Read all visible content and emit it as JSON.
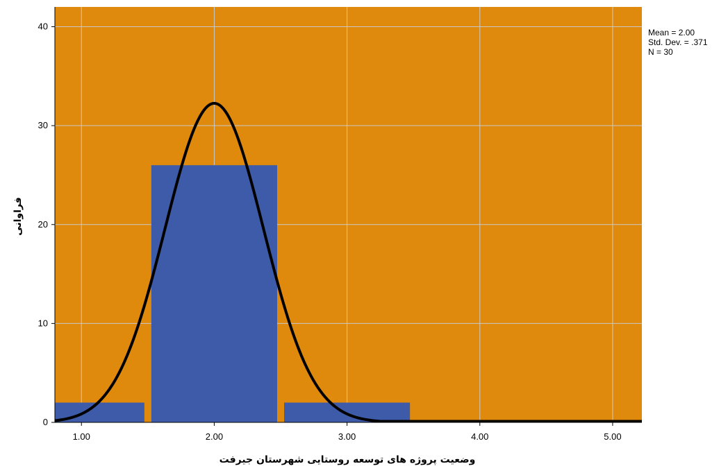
{
  "chart_data": {
    "type": "bar",
    "subtype": "histogram",
    "xlabel": "وضعیت پروژه های توسعه روستایی شهرستان جیرفت",
    "ylabel": "فراوانی",
    "xlim": [
      0.8,
      5.22
    ],
    "ylim": [
      0,
      42
    ],
    "xticks": [
      "1.00",
      "2.00",
      "3.00",
      "4.00",
      "5.00"
    ],
    "xtick_values": [
      1,
      2,
      3,
      4,
      5
    ],
    "yticks": [
      "0",
      "10",
      "20",
      "30",
      "40"
    ],
    "ytick_values": [
      0,
      10,
      20,
      30,
      40
    ],
    "bins": [
      {
        "start": 0.8,
        "end": 1.5,
        "count": 2
      },
      {
        "start": 1.5,
        "end": 2.5,
        "count": 26
      },
      {
        "start": 2.5,
        "end": 3.5,
        "count": 2
      },
      {
        "start": 3.5,
        "end": 5.22,
        "count": 0
      }
    ],
    "normal_curve": {
      "mean": 2.0,
      "sd": 0.371,
      "n": 30,
      "bin_width": 1.0
    },
    "stats": [
      "Mean = 2.00",
      "Std. Dev. = .371",
      "N = 30"
    ],
    "grid": true,
    "colors": {
      "plot_background": "#E08A0D",
      "bar": "#3E5BA9",
      "curve": "#000000",
      "grid": "#C9C9C9"
    }
  }
}
